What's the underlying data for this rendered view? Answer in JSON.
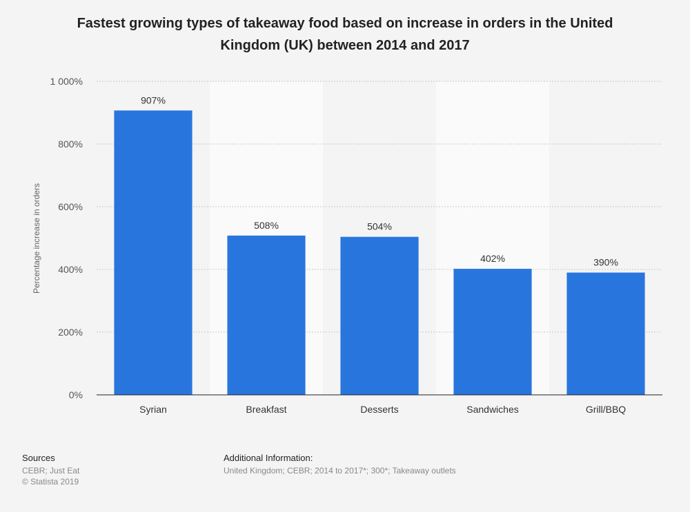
{
  "chart_data": {
    "type": "bar",
    "title_lines": [
      "Fastest growing types of takeaway food based on increase in orders in the United",
      "Kingdom (UK) between 2014 and 2017"
    ],
    "categories": [
      "Syrian",
      "Breakfast",
      "Desserts",
      "Sandwiches",
      "Grill/BBQ"
    ],
    "values": [
      907,
      508,
      504,
      402,
      390
    ],
    "value_labels": [
      "907%",
      "508%",
      "504%",
      "402%",
      "390%"
    ],
    "xlabel": "",
    "ylabel": "Percentage increase in orders",
    "ylim": [
      0,
      1000
    ],
    "yticks": [
      0,
      200,
      400,
      600,
      800,
      1000
    ],
    "ytick_labels": [
      "0%",
      "200%",
      "400%",
      "600%",
      "800%",
      "1 000%"
    ],
    "grid": true,
    "legend": "none",
    "bar_color": "#2876dd",
    "band_color": "#fafafa"
  },
  "footer": {
    "sources_heading": "Sources",
    "sources_lines": [
      "CEBR; Just Eat",
      "© Statista 2019"
    ],
    "additional_heading": "Additional Information:",
    "additional_text": "United Kingdom; CEBR; 2014 to 2017*; 300*; Takeaway outlets"
  }
}
